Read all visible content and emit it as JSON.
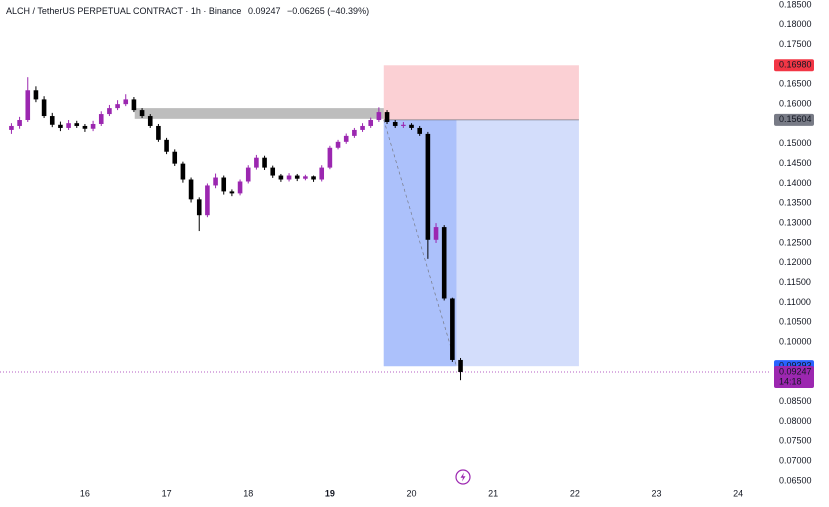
{
  "chart_data": {
    "type": "candlestick",
    "header": {
      "symbol": "ALCH / TetherUS PERPETUAL CONTRACT · 1h · Binance",
      "price": "0.09247",
      "change": "−0.06265 (−40.39%)"
    },
    "up_color": "#9b27b0",
    "down_color": "#000000",
    "x": [
      15.1,
      15.2,
      15.3,
      15.4,
      15.5,
      15.6,
      15.7,
      15.8,
      15.9,
      16.0,
      16.1,
      16.2,
      16.3,
      16.4,
      16.5,
      16.6,
      16.7,
      16.8,
      16.9,
      17.0,
      17.1,
      17.2,
      17.3,
      17.4,
      17.5,
      17.6,
      17.7,
      17.8,
      17.9,
      18.0,
      18.1,
      18.2,
      18.3,
      18.4,
      18.5,
      18.6,
      18.7,
      18.8,
      18.9,
      19.0,
      19.1,
      19.2,
      19.3,
      19.4,
      19.5,
      19.6,
      19.7,
      19.8,
      19.9,
      20.0,
      20.1,
      20.2,
      20.3,
      20.4,
      20.5,
      20.6
    ],
    "open": [
      0.1535,
      0.1545,
      0.156,
      0.1635,
      0.1612,
      0.157,
      0.1548,
      0.154,
      0.1552,
      0.1545,
      0.1538,
      0.155,
      0.1575,
      0.159,
      0.16,
      0.1612,
      0.1585,
      0.157,
      0.1545,
      0.151,
      0.148,
      0.145,
      0.141,
      0.136,
      0.132,
      0.1395,
      0.1415,
      0.138,
      0.1375,
      0.1405,
      0.144,
      0.1465,
      0.144,
      0.142,
      0.141,
      0.142,
      0.1412,
      0.1418,
      0.141,
      0.144,
      0.149,
      0.1505,
      0.152,
      0.1535,
      0.1545,
      0.156,
      0.158,
      0.1555,
      0.1545,
      0.1548,
      0.154,
      0.1525,
      0.1258,
      0.129,
      0.111,
      0.0955
    ],
    "high": [
      0.1552,
      0.1568,
      0.1668,
      0.1645,
      0.162,
      0.1578,
      0.1556,
      0.156,
      0.1558,
      0.155,
      0.1558,
      0.1582,
      0.1598,
      0.161,
      0.1625,
      0.1618,
      0.159,
      0.1575,
      0.155,
      0.1515,
      0.1486,
      0.1455,
      0.1415,
      0.1365,
      0.14,
      0.1425,
      0.142,
      0.1385,
      0.141,
      0.1446,
      0.1472,
      0.147,
      0.1445,
      0.1424,
      0.1426,
      0.1424,
      0.1422,
      0.142,
      0.1446,
      0.1495,
      0.151,
      0.1526,
      0.154,
      0.1552,
      0.1566,
      0.1592,
      0.1585,
      0.156,
      0.1555,
      0.1552,
      0.1545,
      0.153,
      0.13,
      0.1295,
      0.1112,
      0.096
    ],
    "low": [
      0.1525,
      0.1538,
      0.1555,
      0.1605,
      0.1565,
      0.1542,
      0.1532,
      0.1535,
      0.154,
      0.153,
      0.1532,
      0.1545,
      0.157,
      0.1585,
      0.1595,
      0.158,
      0.1565,
      0.154,
      0.1505,
      0.1474,
      0.1444,
      0.1402,
      0.1352,
      0.128,
      0.1315,
      0.1388,
      0.1372,
      0.1368,
      0.137,
      0.14,
      0.1435,
      0.1434,
      0.1414,
      0.1404,
      0.1405,
      0.1406,
      0.1408,
      0.1404,
      0.1405,
      0.1436,
      0.1486,
      0.15,
      0.1515,
      0.153,
      0.154,
      0.1555,
      0.155,
      0.154,
      0.154,
      0.1535,
      0.152,
      0.121,
      0.125,
      0.1105,
      0.095,
      0.0904
    ],
    "close": [
      0.1545,
      0.156,
      0.1635,
      0.1612,
      0.157,
      0.1548,
      0.154,
      0.1552,
      0.1545,
      0.1538,
      0.155,
      0.1575,
      0.159,
      0.16,
      0.1612,
      0.1585,
      0.157,
      0.1545,
      0.151,
      0.148,
      0.145,
      0.141,
      0.136,
      0.132,
      0.1395,
      0.1415,
      0.138,
      0.1375,
      0.1405,
      0.144,
      0.1465,
      0.144,
      0.142,
      0.141,
      0.142,
      0.1412,
      0.1418,
      0.141,
      0.144,
      0.149,
      0.1505,
      0.152,
      0.1535,
      0.1545,
      0.156,
      0.158,
      0.1555,
      0.1545,
      0.1548,
      0.154,
      0.1525,
      0.1258,
      0.129,
      0.111,
      0.0955,
      0.09247
    ],
    "xlim": [
      14.96,
      24.39
    ],
    "xticks": [
      16,
      17,
      18,
      19,
      20,
      21,
      22,
      23,
      24
    ],
    "highlight_xtick": 19,
    "ylim": [
      0.06145,
      0.18626
    ],
    "yticks": [
      {
        "value": 0.185,
        "label": "0.18500"
      },
      {
        "value": 0.18,
        "label": "0.18000"
      },
      {
        "value": 0.175,
        "label": "0.17500"
      },
      {
        "value": 0.165,
        "label": "0.16500"
      },
      {
        "value": 0.16,
        "label": "0.16000"
      },
      {
        "value": 0.15,
        "label": "0.15000"
      },
      {
        "value": 0.145,
        "label": "0.14500"
      },
      {
        "value": 0.14,
        "label": "0.14000"
      },
      {
        "value": 0.135,
        "label": "0.13500"
      },
      {
        "value": 0.13,
        "label": "0.13000"
      },
      {
        "value": 0.125,
        "label": "0.12500"
      },
      {
        "value": 0.12,
        "label": "0.12000"
      },
      {
        "value": 0.115,
        "label": "0.11500"
      },
      {
        "value": 0.11,
        "label": "0.11000"
      },
      {
        "value": 0.105,
        "label": "0.10500"
      },
      {
        "value": 0.1,
        "label": "0.10000"
      },
      {
        "value": 0.085,
        "label": "0.08500"
      },
      {
        "value": 0.08,
        "label": "0.08000"
      },
      {
        "value": 0.075,
        "label": "0.07500"
      },
      {
        "value": 0.07,
        "label": "0.07000"
      },
      {
        "value": 0.065,
        "label": "0.06500"
      }
    ],
    "grid": false,
    "price_tags": [
      {
        "value": 0.1698,
        "label": "0.16980",
        "color": "#f23645"
      },
      {
        "value": 0.15604,
        "label": "0.15604",
        "color": "#787b86"
      },
      {
        "value": 0.09393,
        "label": "0.09393",
        "color": "#2962ff"
      },
      {
        "value": 0.09247,
        "label": "0.09247",
        "color": "#9c27b0",
        "countdown": "14:18"
      }
    ],
    "position": {
      "x": [
        19.66,
        22.05
      ],
      "stop_color": "#fbd0d4",
      "target_color": "#d3ddfb",
      "active_color": "#acc1fb"
    },
    "zone": {
      "x": [
        16.61,
        20.25
      ],
      "y": [
        0.1563,
        0.159
      ],
      "color": "#bdbdbd"
    }
  }
}
